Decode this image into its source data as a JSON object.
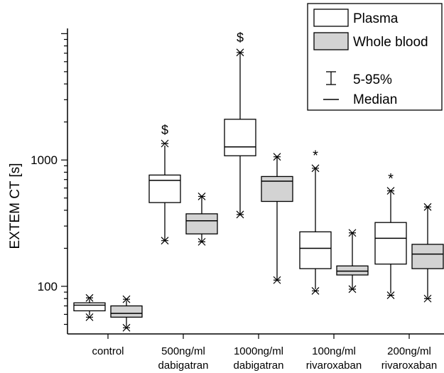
{
  "chart_data": {
    "type": "box",
    "ylabel": "EXTEM CT [s]",
    "yscale": "log",
    "ylim": [
      42,
      11000
    ],
    "ytick_labels": [
      {
        "value": 100,
        "label": "100"
      },
      {
        "value": 1000,
        "label": "1000"
      }
    ],
    "groups": [
      {
        "label_lines": [
          "control"
        ]
      },
      {
        "label_lines": [
          "500ng/ml",
          "dabigatran"
        ]
      },
      {
        "label_lines": [
          "1000ng/ml",
          "dabigatran"
        ]
      },
      {
        "label_lines": [
          "100ng/ml",
          "rivaroxaban"
        ]
      },
      {
        "label_lines": [
          "200ng/ml",
          "rivaroxaban"
        ]
      }
    ],
    "series": [
      {
        "name": "Plasma",
        "fill": "#ffffff",
        "boxes": [
          {
            "p5": 59,
            "q1": 64,
            "median": 71,
            "q3": 74,
            "p95": 79,
            "outliers": [
              57,
              81
            ],
            "marker": ""
          },
          {
            "p5": 230,
            "q1": 460,
            "median": 690,
            "q3": 760,
            "p95": 1300,
            "outliers": [
              230,
              1350
            ],
            "marker": "$"
          },
          {
            "p5": 370,
            "q1": 1080,
            "median": 1270,
            "q3": 2100,
            "p95": 7000,
            "outliers": [
              370,
              7100
            ],
            "marker": "$"
          },
          {
            "p5": 95,
            "q1": 138,
            "median": 200,
            "q3": 270,
            "p95": 850,
            "outliers": [
              92,
              860
            ],
            "marker": "*"
          },
          {
            "p5": 88,
            "q1": 150,
            "median": 240,
            "q3": 320,
            "p95": 560,
            "outliers": [
              85,
              570
            ],
            "marker": "*"
          }
        ]
      },
      {
        "name": "Whole blood",
        "fill": "#d3d3d3",
        "boxes": [
          {
            "p5": 48,
            "q1": 57,
            "median": 61,
            "q3": 70,
            "p95": 77,
            "outliers": [
              47,
              79
            ],
            "marker": ""
          },
          {
            "p5": 225,
            "q1": 260,
            "median": 330,
            "q3": 375,
            "p95": 510,
            "outliers": [
              225,
              515
            ],
            "marker": ""
          },
          {
            "p5": 112,
            "q1": 470,
            "median": 680,
            "q3": 740,
            "p95": 1050,
            "outliers": [
              112,
              1060
            ],
            "marker": ""
          },
          {
            "p5": 97,
            "q1": 123,
            "median": 132,
            "q3": 145,
            "p95": 262,
            "outliers": [
              95,
              265
            ],
            "marker": ""
          },
          {
            "p5": 82,
            "q1": 138,
            "median": 180,
            "q3": 215,
            "p95": 420,
            "outliers": [
              80,
              425
            ],
            "marker": ""
          }
        ]
      }
    ],
    "legend": {
      "position": "top-right",
      "entries": [
        {
          "label": "Plasma",
          "fill": "#ffffff"
        },
        {
          "label": "Whole blood",
          "fill": "#d3d3d3"
        }
      ],
      "whisker_label": "5-95%",
      "median_label": "Median"
    }
  }
}
